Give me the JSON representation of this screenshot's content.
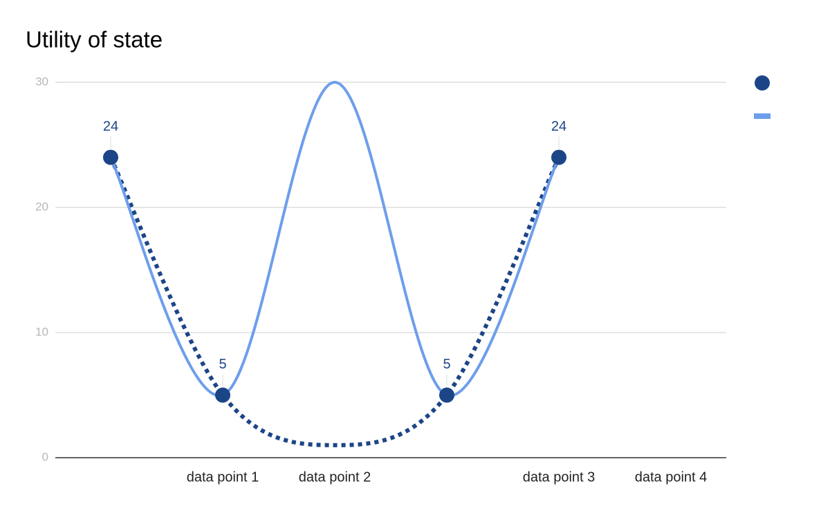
{
  "chart_data": {
    "type": "line",
    "title": "Utility of state",
    "categories": [
      null,
      "data point 1",
      "data point 2",
      null,
      "data point 3",
      "data point 4"
    ],
    "series": [
      {
        "color": "#1c4587",
        "marker": "circle",
        "line": false,
        "data_labels": true,
        "values": [
          24,
          5,
          null,
          5,
          24,
          null
        ],
        "trendline": {
          "style": "dotted",
          "values": [
            24,
            5,
            1,
            5,
            24,
            null
          ]
        }
      },
      {
        "color": "#6d9eeb",
        "marker": "none",
        "line": true,
        "smooth": true,
        "data_labels": false,
        "values": [
          24,
          5,
          30,
          5,
          24,
          null
        ]
      }
    ],
    "ylim": [
      0,
      30
    ],
    "yticks": [
      0,
      10,
      20,
      30
    ],
    "grid": true,
    "legend": "right"
  }
}
